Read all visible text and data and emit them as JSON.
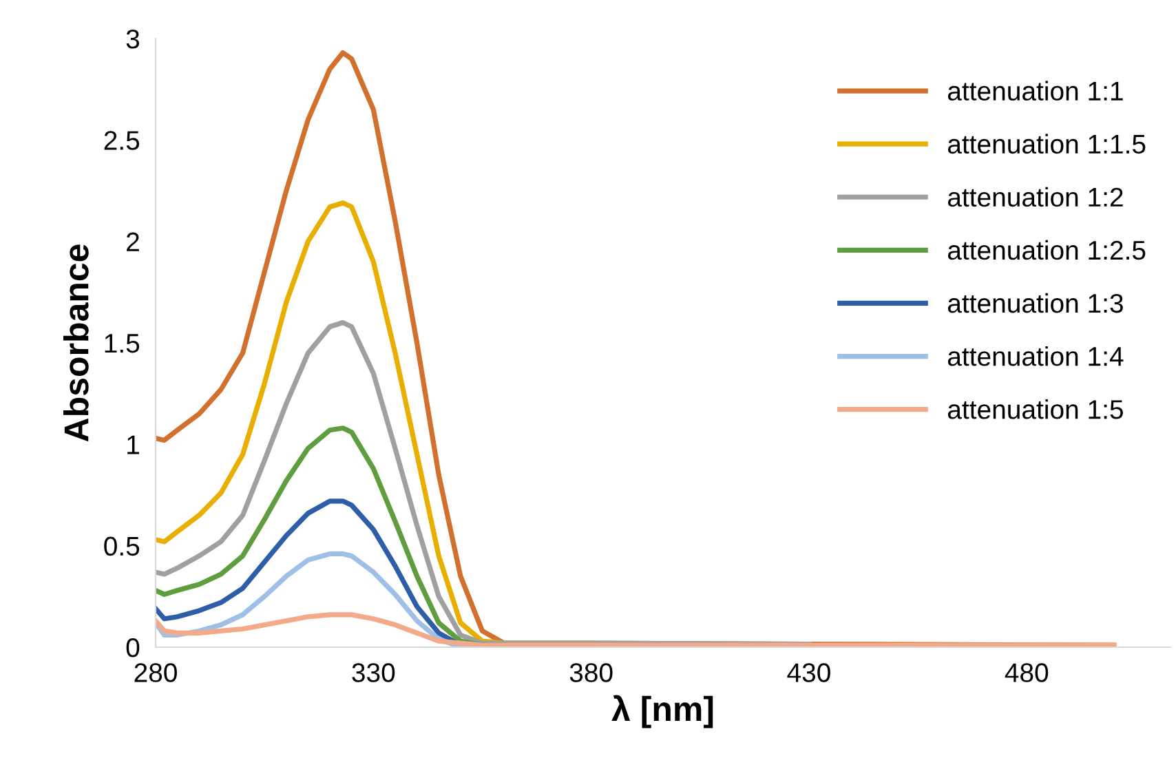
{
  "chart_data": {
    "type": "line",
    "xlabel": "λ [nm]",
    "ylabel": "Absorbance",
    "x": [
      280,
      282,
      285,
      290,
      295,
      300,
      305,
      310,
      315,
      320,
      323,
      325,
      330,
      335,
      340,
      345,
      350,
      355,
      360,
      380,
      430,
      500
    ],
    "xlim": [
      280,
      513
    ],
    "xticks": [
      280,
      330,
      380,
      430,
      480
    ],
    "ylim": [
      0,
      3
    ],
    "yticks": [
      0,
      0.5,
      1,
      1.5,
      2,
      2.5,
      3
    ],
    "grid": false,
    "legend": "top right",
    "marker": "none",
    "line_style": "solid",
    "series": [
      {
        "name": "attenuation 1:1",
        "color": "#d2702e",
        "values": [
          1.03,
          1.02,
          1.07,
          1.15,
          1.27,
          1.45,
          1.85,
          2.25,
          2.6,
          2.85,
          2.93,
          2.9,
          2.65,
          2.1,
          1.5,
          0.85,
          0.35,
          0.08,
          0.02,
          0.02,
          0.015,
          0.01
        ]
      },
      {
        "name": "attenuation 1:1.5",
        "color": "#e8ae00",
        "values": [
          0.53,
          0.52,
          0.57,
          0.65,
          0.76,
          0.95,
          1.3,
          1.7,
          2.0,
          2.17,
          2.19,
          2.17,
          1.9,
          1.45,
          0.95,
          0.45,
          0.12,
          0.03,
          0.02,
          0.02,
          null,
          null
        ]
      },
      {
        "name": "attenuation 1:2",
        "color": "#a0a0a0",
        "values": [
          0.37,
          0.36,
          0.39,
          0.45,
          0.52,
          0.65,
          0.92,
          1.2,
          1.45,
          1.58,
          1.6,
          1.58,
          1.35,
          0.98,
          0.6,
          0.25,
          0.06,
          0.02,
          0.02,
          0.02,
          0.015,
          null
        ]
      },
      {
        "name": "attenuation 1:2.5",
        "color": "#5e9e3e",
        "values": [
          0.28,
          0.26,
          0.28,
          0.31,
          0.36,
          0.45,
          0.63,
          0.82,
          0.98,
          1.07,
          1.08,
          1.06,
          0.88,
          0.62,
          0.35,
          0.12,
          0.03,
          0.01,
          0.01,
          null,
          null,
          null
        ]
      },
      {
        "name": "attenuation 1:3",
        "color": "#2f5ea8",
        "values": [
          0.19,
          0.14,
          0.15,
          0.18,
          0.22,
          0.29,
          0.42,
          0.55,
          0.66,
          0.72,
          0.72,
          0.7,
          0.58,
          0.4,
          0.2,
          0.07,
          0.01,
          0.01,
          null,
          null,
          null,
          null
        ]
      },
      {
        "name": "attenuation 1:4",
        "color": "#9ec0e6",
        "values": [
          0.12,
          0.06,
          0.06,
          0.08,
          0.11,
          0.16,
          0.25,
          0.35,
          0.43,
          0.46,
          0.46,
          0.45,
          0.37,
          0.26,
          0.13,
          0.04,
          0.0,
          0.0,
          null,
          null,
          null,
          null
        ]
      },
      {
        "name": "attenuation 1:5",
        "color": "#f4a98a",
        "values": [
          0.13,
          0.08,
          0.07,
          0.07,
          0.08,
          0.09,
          0.11,
          0.13,
          0.15,
          0.16,
          0.16,
          0.16,
          0.14,
          0.11,
          0.07,
          0.03,
          0.02,
          0.01,
          0.01,
          0.01,
          0.01,
          0.01
        ]
      }
    ]
  }
}
